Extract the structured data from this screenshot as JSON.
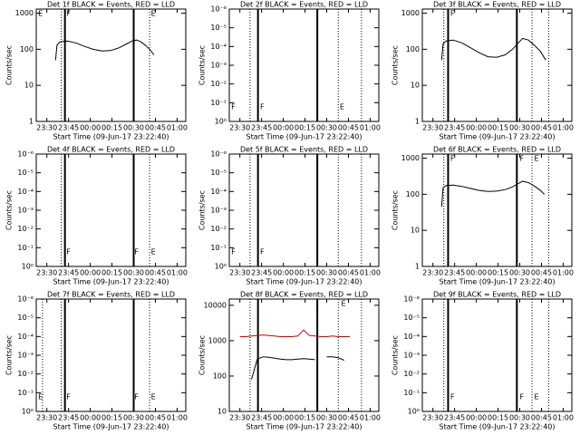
{
  "chart_data": [
    {
      "type": "line",
      "title": "Det 1f BLACK = Events, RED = LLD",
      "x_label": "Start Time (09-Jun-17 23:22:40)",
      "y_label": "Counts/sec",
      "log_y": true,
      "xlim": [
        1402.67,
        1506
      ],
      "xticks": [
        {
          "value": 1410,
          "label": "23:30"
        },
        {
          "value": 1425,
          "label": "23:45"
        },
        {
          "value": 1440,
          "label": "00:00"
        },
        {
          "value": 1455,
          "label": "00:15"
        },
        {
          "value": 1470,
          "label": "00:30"
        },
        {
          "value": 1485,
          "label": "00:45"
        },
        {
          "value": 1500,
          "label": "01:00"
        }
      ],
      "ylim": [
        1,
        1300
      ],
      "yticks": [
        1,
        10,
        100,
        1000
      ],
      "x": [
        1416,
        1417,
        1419,
        1424,
        1430,
        1436,
        1442,
        1448,
        1454,
        1460,
        1465,
        1469,
        1472,
        1475,
        1478,
        1481,
        1484
      ],
      "series": [
        {
          "color": "#000000",
          "values": [
            50,
            130,
            160,
            170,
            150,
            120,
            100,
            90,
            92,
            110,
            140,
            170,
            180,
            160,
            130,
            100,
            70
          ]
        }
      ],
      "vlines": [
        {
          "x": 1420,
          "style": "dotted"
        },
        {
          "x": 1422.5,
          "style": "solid"
        },
        {
          "x": 1470,
          "style": "solid"
        },
        {
          "x": 1481,
          "style": "dotted"
        }
      ],
      "markers_position": "top",
      "markers": [
        {
          "x": 1404,
          "text": "E"
        },
        {
          "x": 1423.5,
          "text": "F"
        },
        {
          "x": 1482,
          "text": "E"
        }
      ]
    },
    {
      "type": "line",
      "title": "Det 2f BLACK = Events, RED = LLD",
      "x_label": "Start Time (09-Jun-17 23:22:40)",
      "y_label": "Counts/sec",
      "log_y": true,
      "xlim": [
        1402.67,
        1506
      ],
      "xticks": [
        {
          "value": 1410,
          "label": "23:30"
        },
        {
          "value": 1425,
          "label": "23:45"
        },
        {
          "value": 1440,
          "label": "00:00"
        },
        {
          "value": 1455,
          "label": "00:15"
        },
        {
          "value": 1470,
          "label": "00:30"
        },
        {
          "value": 1485,
          "label": "00:45"
        },
        {
          "value": 1500,
          "label": "01:00"
        }
      ],
      "ylim": [
        1,
        1e-06
      ],
      "yticks": [
        {
          "value": 1,
          "label": "10⁰"
        },
        {
          "value": 0.1,
          "label": "10⁻¹"
        },
        {
          "value": 0.01,
          "label": "10⁻²"
        },
        {
          "value": 0.001,
          "label": "10⁻³"
        },
        {
          "value": 0.0001,
          "label": "10⁻⁴"
        },
        {
          "value": 1e-05,
          "label": "10⁻⁵"
        },
        {
          "value": 1e-06,
          "label": "10⁻⁶"
        }
      ],
      "vlines": [
        {
          "x": 1417,
          "style": "dotted"
        },
        {
          "x": 1422.5,
          "style": "solid"
        },
        {
          "x": 1463.5,
          "style": "solid"
        },
        {
          "x": 1478,
          "style": "dotted"
        },
        {
          "x": 1494,
          "style": "dotted"
        }
      ],
      "markers_position": "bottom",
      "markers": [
        {
          "x": 1404,
          "text": "F"
        },
        {
          "x": 1424,
          "text": "F"
        },
        {
          "x": 1479,
          "text": "E"
        }
      ]
    },
    {
      "type": "line",
      "title": "Det 3f BLACK = Events, RED = LLD",
      "x_label": "Start Time (09-Jun-17 23:22:40)",
      "y_label": "Counts/sec",
      "log_y": true,
      "xlim": [
        1402.67,
        1506
      ],
      "xticks": [
        {
          "value": 1410,
          "label": "23:30"
        },
        {
          "value": 1425,
          "label": "23:45"
        },
        {
          "value": 1440,
          "label": "00:00"
        },
        {
          "value": 1455,
          "label": "00:15"
        },
        {
          "value": 1470,
          "label": "00:30"
        },
        {
          "value": 1485,
          "label": "00:45"
        },
        {
          "value": 1500,
          "label": "01:00"
        }
      ],
      "ylim": [
        1,
        1300
      ],
      "yticks": [
        1,
        10,
        100,
        1000
      ],
      "x": [
        1416,
        1417,
        1419,
        1424,
        1430,
        1436,
        1442,
        1448,
        1454,
        1460,
        1465,
        1469,
        1472,
        1476,
        1480,
        1484,
        1488
      ],
      "series": [
        {
          "color": "#000000",
          "values": [
            50,
            140,
            170,
            180,
            150,
            110,
            80,
            62,
            60,
            70,
            100,
            150,
            200,
            180,
            130,
            90,
            50
          ]
        }
      ],
      "vlines": [
        {
          "x": 1417.5,
          "style": "dotted"
        },
        {
          "x": 1420.5,
          "style": "solid"
        },
        {
          "x": 1468,
          "style": "solid"
        },
        {
          "x": 1478.5,
          "style": "dotted"
        },
        {
          "x": 1490,
          "style": "dotted"
        }
      ],
      "markers_position": "top",
      "markers": [
        {
          "x": 1422,
          "text": "F"
        }
      ]
    },
    {
      "type": "line",
      "title": "Det 4f BLACK = Events, RED = LLD",
      "x_label": "Start Time (09-Jun-17 23:22:40)",
      "y_label": "Counts/sec",
      "log_y": true,
      "xlim": [
        1402.67,
        1506
      ],
      "xticks": [
        {
          "value": 1410,
          "label": "23:30"
        },
        {
          "value": 1425,
          "label": "23:45"
        },
        {
          "value": 1440,
          "label": "00:00"
        },
        {
          "value": 1455,
          "label": "00:15"
        },
        {
          "value": 1470,
          "label": "00:30"
        },
        {
          "value": 1485,
          "label": "00:45"
        },
        {
          "value": 1500,
          "label": "01:00"
        }
      ],
      "ylim": [
        1,
        1e-06
      ],
      "yticks": [
        {
          "value": 1,
          "label": "10⁰"
        },
        {
          "value": 0.1,
          "label": "10⁻¹"
        },
        {
          "value": 0.01,
          "label": "10⁻²"
        },
        {
          "value": 0.001,
          "label": "10⁻³"
        },
        {
          "value": 0.0001,
          "label": "10⁻⁴"
        },
        {
          "value": 1e-05,
          "label": "10⁻⁵"
        },
        {
          "value": 1e-06,
          "label": "10⁻⁶"
        }
      ],
      "vlines": [
        {
          "x": 1420,
          "style": "dotted"
        },
        {
          "x": 1422.5,
          "style": "solid"
        },
        {
          "x": 1470,
          "style": "solid"
        },
        {
          "x": 1481,
          "style": "dotted"
        }
      ],
      "markers_position": "bottom",
      "markers": [
        {
          "x": 1423.5,
          "text": "F"
        },
        {
          "x": 1470.5,
          "text": "F"
        },
        {
          "x": 1482,
          "text": "E"
        }
      ]
    },
    {
      "type": "line",
      "title": "Det 5f BLACK = Events, RED = LLD",
      "x_label": "Start Time (09-Jun-17 23:22:40)",
      "y_label": "Counts/sec",
      "log_y": true,
      "xlim": [
        1402.67,
        1506
      ],
      "xticks": [
        {
          "value": 1410,
          "label": "23:30"
        },
        {
          "value": 1425,
          "label": "23:45"
        },
        {
          "value": 1440,
          "label": "00:00"
        },
        {
          "value": 1455,
          "label": "00:15"
        },
        {
          "value": 1470,
          "label": "00:30"
        },
        {
          "value": 1485,
          "label": "00:45"
        },
        {
          "value": 1500,
          "label": "01:00"
        }
      ],
      "ylim": [
        1,
        1e-06
      ],
      "yticks": [
        {
          "value": 1,
          "label": "10⁰"
        },
        {
          "value": 0.1,
          "label": "10⁻¹"
        },
        {
          "value": 0.01,
          "label": "10⁻²"
        },
        {
          "value": 0.001,
          "label": "10⁻³"
        },
        {
          "value": 0.0001,
          "label": "10⁻⁴"
        },
        {
          "value": 1e-05,
          "label": "10⁻⁵"
        },
        {
          "value": 1e-06,
          "label": "10⁻⁶"
        }
      ],
      "vlines": [
        {
          "x": 1417,
          "style": "dotted"
        },
        {
          "x": 1422.5,
          "style": "solid"
        },
        {
          "x": 1463.5,
          "style": "solid"
        },
        {
          "x": 1478,
          "style": "dotted"
        },
        {
          "x": 1494,
          "style": "dotted"
        }
      ],
      "markers_position": "bottom",
      "markers": [
        {
          "x": 1404,
          "text": "F"
        },
        {
          "x": 1424,
          "text": "F"
        }
      ]
    },
    {
      "type": "line",
      "title": "Det 6f BLACK = Events, RED = LLD",
      "x_label": "Start Time (09-Jun-17 23:22:40)",
      "y_label": "Counts/sec",
      "log_y": true,
      "xlim": [
        1402.67,
        1506
      ],
      "xticks": [
        {
          "value": 1410,
          "label": "23:30"
        },
        {
          "value": 1425,
          "label": "23:45"
        },
        {
          "value": 1440,
          "label": "00:00"
        },
        {
          "value": 1455,
          "label": "00:15"
        },
        {
          "value": 1470,
          "label": "00:30"
        },
        {
          "value": 1485,
          "label": "00:45"
        },
        {
          "value": 1500,
          "label": "01:00"
        }
      ],
      "ylim": [
        1,
        1300
      ],
      "yticks": [
        1,
        10,
        100,
        1000
      ],
      "x": [
        1416,
        1417,
        1419,
        1424,
        1430,
        1436,
        1442,
        1448,
        1454,
        1460,
        1465,
        1469,
        1472,
        1476,
        1480,
        1484,
        1487
      ],
      "series": [
        {
          "color": "#000000",
          "values": [
            45,
            150,
            175,
            180,
            165,
            145,
            128,
            120,
            122,
            135,
            160,
            200,
            230,
            210,
            170,
            130,
            100
          ]
        }
      ],
      "vlines": [
        {
          "x": 1417.5,
          "style": "dotted"
        },
        {
          "x": 1420.5,
          "style": "solid"
        },
        {
          "x": 1468,
          "style": "solid"
        },
        {
          "x": 1478.5,
          "style": "dotted"
        },
        {
          "x": 1490,
          "style": "dotted"
        }
      ],
      "markers_position": "top",
      "markers": [
        {
          "x": 1422,
          "text": "F"
        },
        {
          "x": 1470,
          "text": "F"
        },
        {
          "x": 1480,
          "text": "E"
        }
      ]
    },
    {
      "type": "line",
      "title": "Det 7f BLACK = Events, RED = LLD",
      "x_label": "Start Time (09-Jun-17 23:22:40)",
      "y_label": "Counts/sec",
      "log_y": true,
      "xlim": [
        1402.67,
        1506
      ],
      "xticks": [
        {
          "value": 1410,
          "label": "23:30"
        },
        {
          "value": 1425,
          "label": "23:45"
        },
        {
          "value": 1440,
          "label": "00:00"
        },
        {
          "value": 1455,
          "label": "00:15"
        },
        {
          "value": 1470,
          "label": "00:30"
        },
        {
          "value": 1485,
          "label": "00:45"
        },
        {
          "value": 1500,
          "label": "01:00"
        }
      ],
      "ylim": [
        1,
        1e-06
      ],
      "yticks": [
        {
          "value": 1,
          "label": "10⁰"
        },
        {
          "value": 0.1,
          "label": "10⁻¹"
        },
        {
          "value": 0.01,
          "label": "10⁻²"
        },
        {
          "value": 0.001,
          "label": "10⁻³"
        },
        {
          "value": 0.0001,
          "label": "10⁻⁴"
        },
        {
          "value": 1e-05,
          "label": "10⁻⁵"
        },
        {
          "value": 1e-06,
          "label": "10⁻⁶"
        }
      ],
      "vlines": [
        {
          "x": 1407,
          "style": "dotted"
        },
        {
          "x": 1420,
          "style": "dotted"
        },
        {
          "x": 1422.5,
          "style": "solid"
        },
        {
          "x": 1470,
          "style": "solid"
        },
        {
          "x": 1481,
          "style": "dotted"
        }
      ],
      "markers_position": "bottom",
      "markers": [
        {
          "x": 1404,
          "text": "E"
        },
        {
          "x": 1423.5,
          "text": "F"
        },
        {
          "x": 1470.5,
          "text": "F"
        },
        {
          "x": 1482,
          "text": "E"
        }
      ]
    },
    {
      "type": "line",
      "title": "Det 8f BLACK = Events, RED = LLD",
      "x_label": "Start Time (09-Jun-17 23:22:40)",
      "y_label": "Counts/sec",
      "log_y": true,
      "xlim": [
        1402.67,
        1506
      ],
      "xticks": [
        {
          "value": 1410,
          "label": "23:30"
        },
        {
          "value": 1425,
          "label": "23:45"
        },
        {
          "value": 1440,
          "label": "00:00"
        },
        {
          "value": 1455,
          "label": "00:15"
        },
        {
          "value": 1470,
          "label": "00:30"
        },
        {
          "value": 1485,
          "label": "00:45"
        },
        {
          "value": 1500,
          "label": "01:00"
        }
      ],
      "ylim": [
        10,
        15000
      ],
      "yticks": [
        10,
        100,
        1000,
        10000
      ],
      "x": [
        1410,
        1414,
        1418,
        1422,
        1426,
        1430,
        1434,
        1438,
        1442,
        1446,
        1450,
        1454,
        1458,
        1462,
        1466,
        1470,
        1474,
        1478,
        1482,
        1486
      ],
      "series": [
        {
          "color": "#cc0000",
          "values": [
            1300,
            1300,
            1350,
            1400,
            1450,
            1400,
            1350,
            1300,
            1300,
            1300,
            1350,
            2000,
            1400,
            1350,
            1300,
            1300,
            1350,
            1300,
            1300,
            1300
          ]
        },
        {
          "color": "#000000",
          "values": [
            null,
            null,
            80,
            300,
            350,
            340,
            320,
            300,
            290,
            290,
            300,
            310,
            300,
            290,
            null,
            350,
            350,
            330,
            280,
            null
          ]
        }
      ],
      "vlines": [
        {
          "x": 1417,
          "style": "dotted"
        },
        {
          "x": 1422.5,
          "style": "solid"
        },
        {
          "x": 1463.5,
          "style": "solid"
        },
        {
          "x": 1478,
          "style": "dotted"
        },
        {
          "x": 1494,
          "style": "dotted"
        }
      ],
      "markers_position": "top",
      "markers": [
        {
          "x": 1480,
          "text": "E"
        }
      ]
    },
    {
      "type": "line",
      "title": "Det 9f BLACK = Events, RED = LLD",
      "x_label": "Start Time (09-Jun-17 23:22:40)",
      "y_label": "Counts/sec",
      "log_y": true,
      "xlim": [
        1402.67,
        1506
      ],
      "xticks": [
        {
          "value": 1410,
          "label": "23:30"
        },
        {
          "value": 1425,
          "label": "23:45"
        },
        {
          "value": 1440,
          "label": "00:00"
        },
        {
          "value": 1455,
          "label": "00:15"
        },
        {
          "value": 1470,
          "label": "00:30"
        },
        {
          "value": 1485,
          "label": "00:45"
        },
        {
          "value": 1500,
          "label": "01:00"
        }
      ],
      "ylim": [
        1,
        1e-06
      ],
      "yticks": [
        {
          "value": 1,
          "label": "10⁰"
        },
        {
          "value": 0.1,
          "label": "10⁻¹"
        },
        {
          "value": 0.01,
          "label": "10⁻²"
        },
        {
          "value": 0.001,
          "label": "10⁻³"
        },
        {
          "value": 0.0001,
          "label": "10⁻⁴"
        },
        {
          "value": 1e-05,
          "label": "10⁻⁵"
        },
        {
          "value": 1e-06,
          "label": "10⁻⁶"
        }
      ],
      "vlines": [
        {
          "x": 1417.5,
          "style": "dotted"
        },
        {
          "x": 1420.5,
          "style": "solid"
        },
        {
          "x": 1468,
          "style": "solid"
        },
        {
          "x": 1478.5,
          "style": "dotted"
        },
        {
          "x": 1490,
          "style": "dotted"
        }
      ],
      "markers_position": "bottom",
      "markers": [
        {
          "x": 1422,
          "text": "F"
        },
        {
          "x": 1470,
          "text": "F"
        },
        {
          "x": 1480,
          "text": "E"
        }
      ]
    }
  ]
}
